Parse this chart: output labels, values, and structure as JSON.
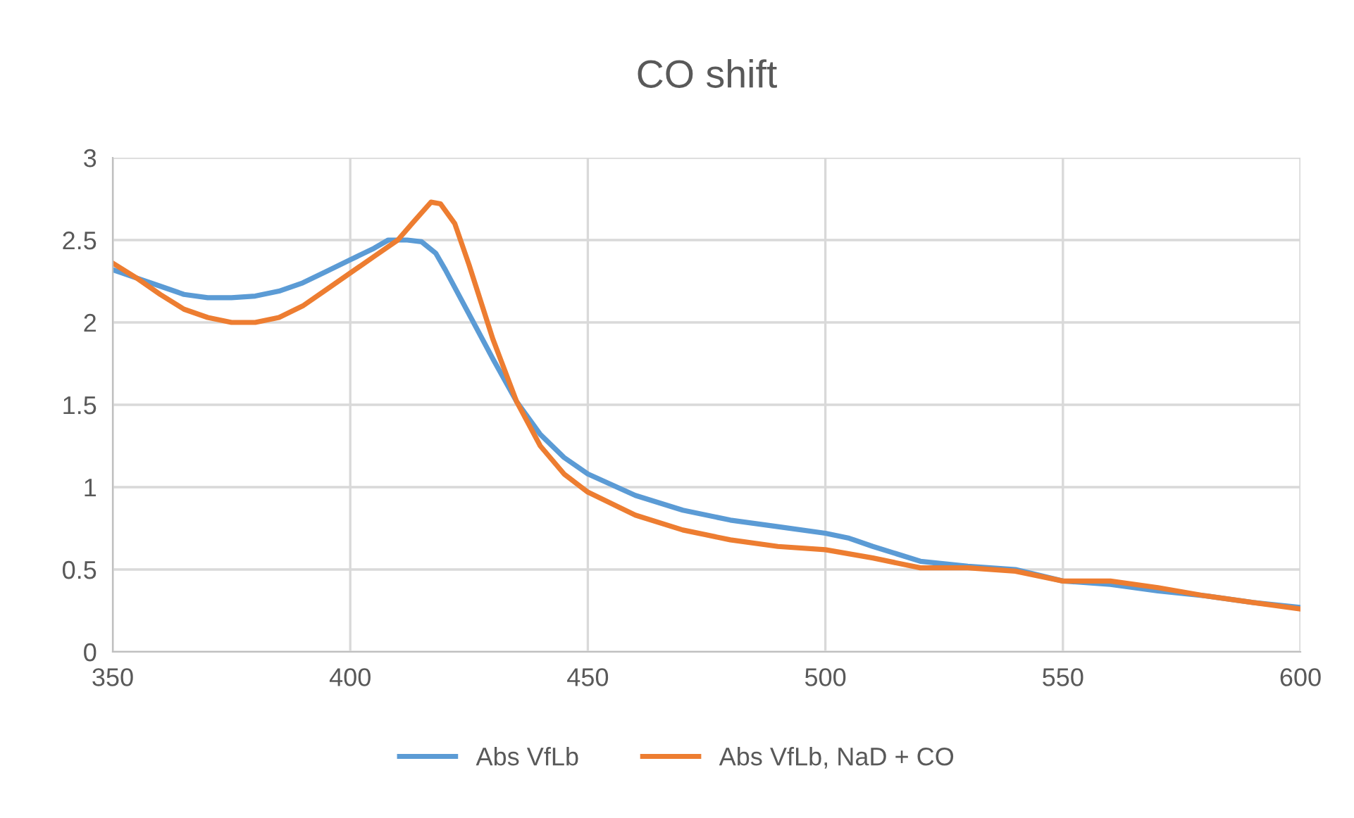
{
  "chart_data": {
    "type": "line",
    "title": "CO shift",
    "xlim": [
      350,
      600
    ],
    "xticks": [
      350,
      400,
      450,
      500,
      550,
      600
    ],
    "ylim": [
      0,
      3
    ],
    "yticks": [
      0,
      0.5,
      1,
      1.5,
      2,
      2.5,
      3
    ],
    "grid": true,
    "legend": "bottom",
    "marker": "none",
    "line_style": "solid",
    "series": [
      {
        "name": "Abs VfLb",
        "color": "#5b9bd5",
        "x": [
          350,
          355,
          360,
          365,
          370,
          375,
          380,
          385,
          390,
          395,
          400,
          405,
          408,
          412,
          415,
          418,
          420,
          425,
          430,
          435,
          440,
          445,
          450,
          460,
          470,
          480,
          490,
          500,
          505,
          510,
          520,
          530,
          540,
          550,
          560,
          570,
          580,
          590,
          600
        ],
        "values": [
          2.32,
          2.27,
          2.22,
          2.17,
          2.15,
          2.15,
          2.16,
          2.19,
          2.24,
          2.31,
          2.38,
          2.45,
          2.5,
          2.5,
          2.49,
          2.42,
          2.32,
          2.05,
          1.78,
          1.52,
          1.32,
          1.18,
          1.08,
          0.95,
          0.86,
          0.8,
          0.76,
          0.72,
          0.69,
          0.64,
          0.55,
          0.52,
          0.5,
          0.43,
          0.41,
          0.37,
          0.34,
          0.3,
          0.27
        ]
      },
      {
        "name": "Abs VfLb, NaD + CO",
        "color": "#ed7d31",
        "x": [
          350,
          355,
          360,
          365,
          370,
          375,
          380,
          385,
          390,
          395,
          400,
          405,
          410,
          413,
          417,
          419,
          422,
          425,
          430,
          435,
          440,
          445,
          450,
          460,
          470,
          480,
          490,
          500,
          510,
          520,
          530,
          540,
          550,
          560,
          570,
          580,
          590,
          600
        ],
        "values": [
          2.36,
          2.27,
          2.17,
          2.08,
          2.03,
          2.0,
          2.0,
          2.03,
          2.1,
          2.2,
          2.3,
          2.4,
          2.5,
          2.6,
          2.73,
          2.72,
          2.6,
          2.35,
          1.9,
          1.52,
          1.25,
          1.08,
          0.97,
          0.83,
          0.74,
          0.68,
          0.64,
          0.62,
          0.57,
          0.51,
          0.51,
          0.49,
          0.43,
          0.43,
          0.39,
          0.34,
          0.3,
          0.26
        ]
      }
    ]
  }
}
